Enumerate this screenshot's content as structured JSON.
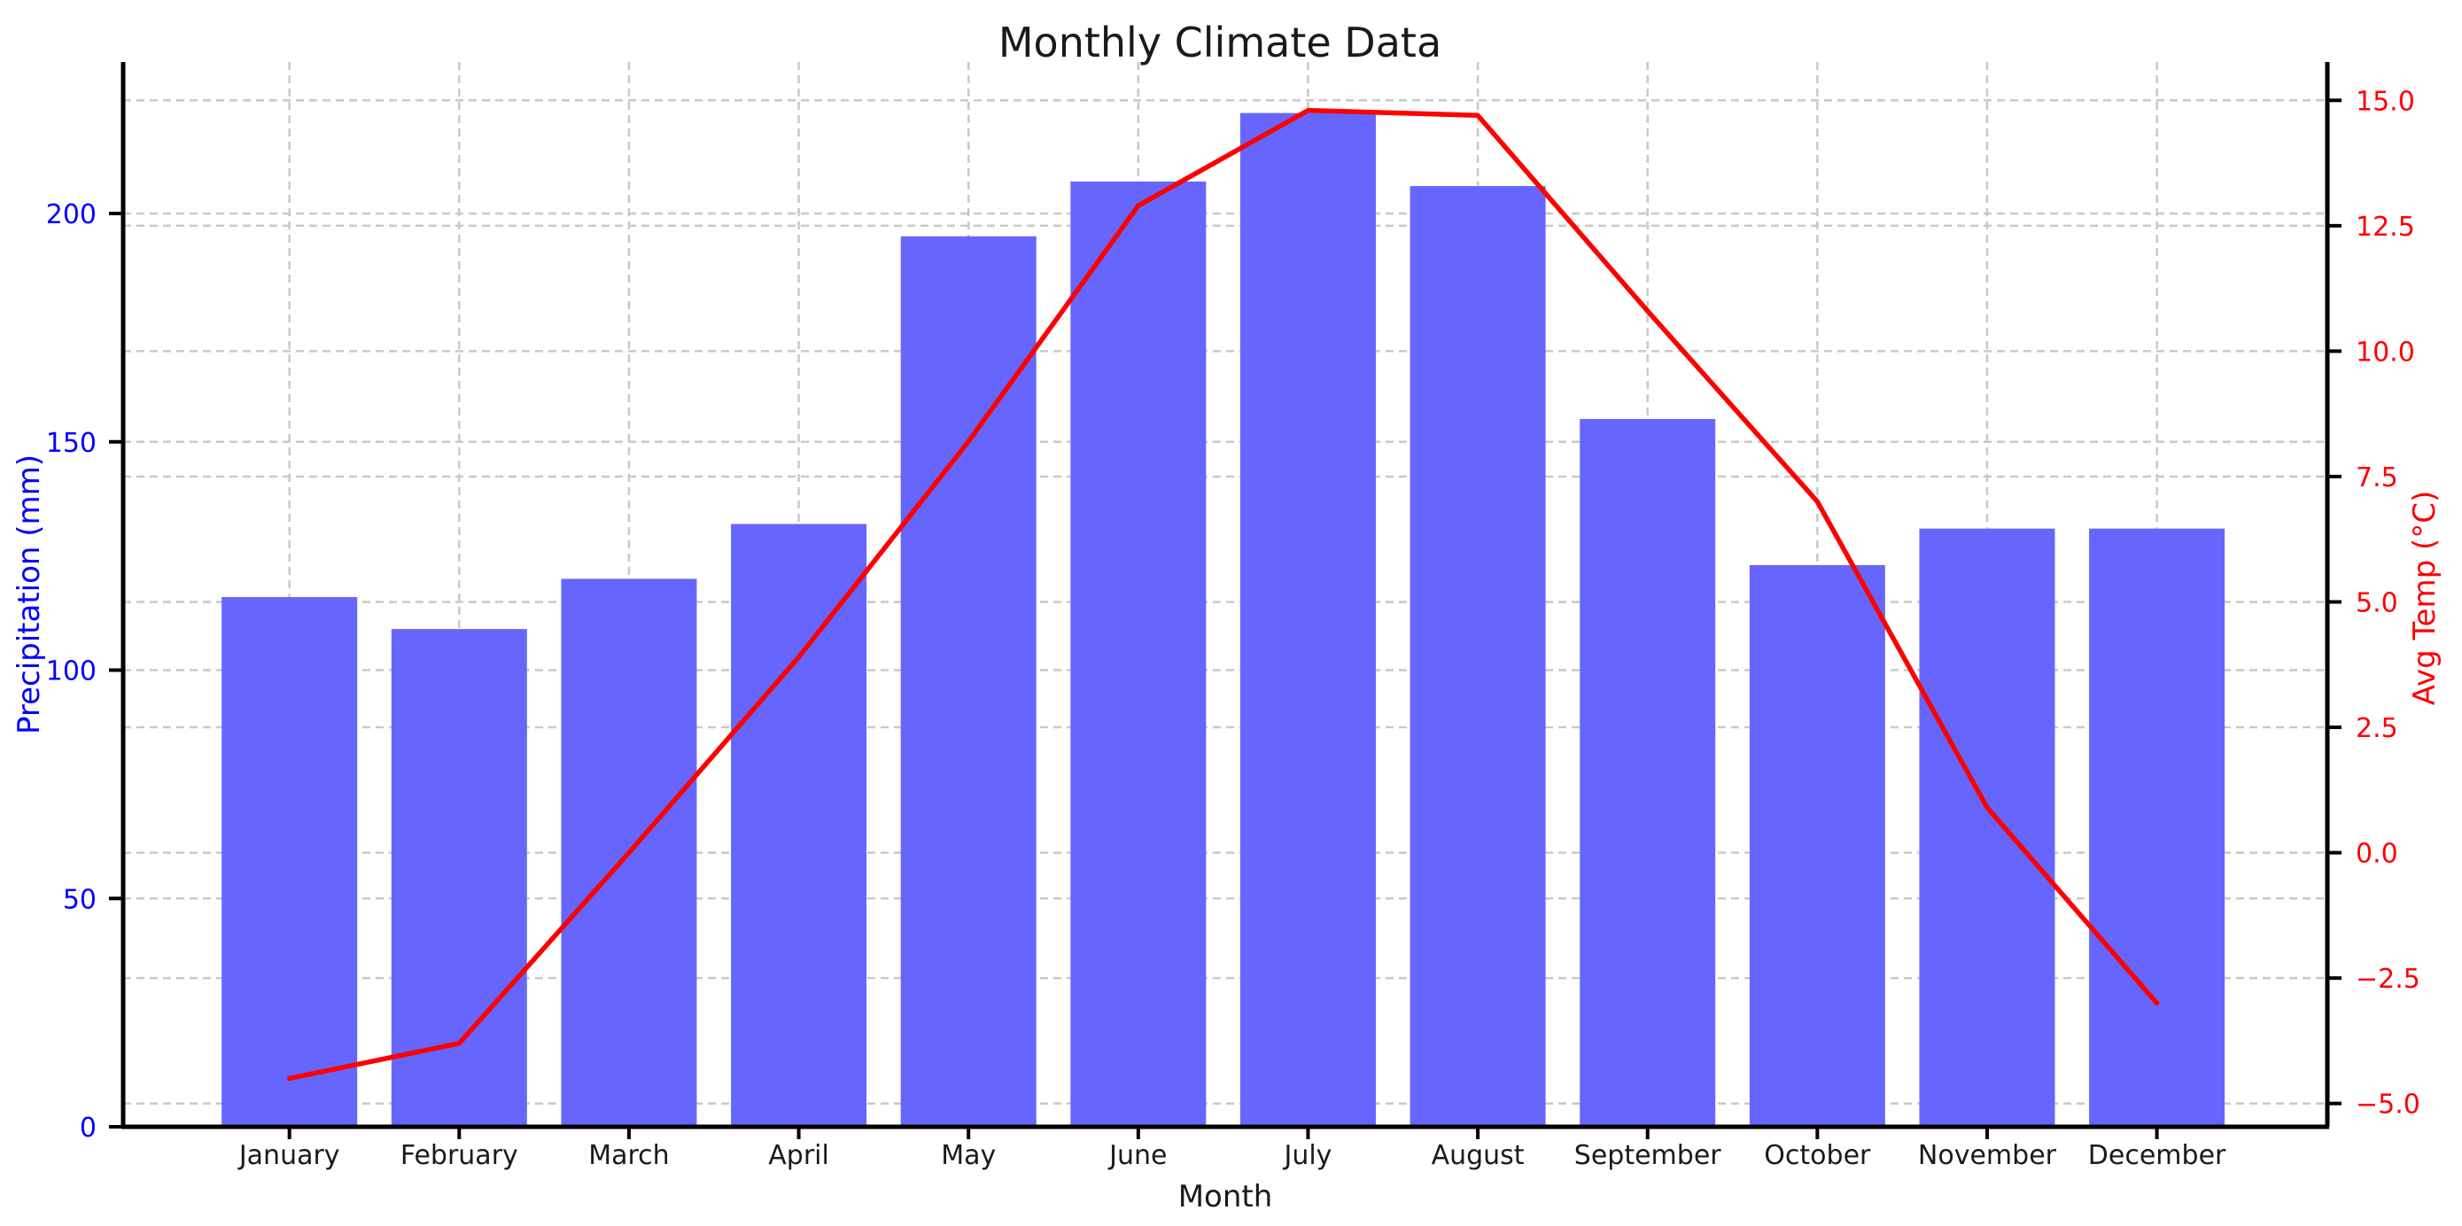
{
  "chart_data": {
    "type": "combo_bar_line",
    "title": "Monthly Climate Data",
    "xlabel": "Month",
    "ylabel_left": "Precipitation (mm)",
    "ylabel_right": "Avg Temp (°C)",
    "categories": [
      "January",
      "February",
      "March",
      "April",
      "May",
      "June",
      "July",
      "August",
      "September",
      "October",
      "November",
      "December"
    ],
    "series": [
      {
        "name": "Precipitation (mm)",
        "type": "bar",
        "axis": "left",
        "color": "#6666ff",
        "values": [
          116,
          109,
          120,
          132,
          195,
          207,
          222,
          206,
          155,
          123,
          131,
          131
        ]
      },
      {
        "name": "Avg Temp (°C)",
        "type": "line",
        "axis": "right",
        "color": "#ff0000",
        "values": [
          -4.5,
          -3.8,
          0.0,
          3.9,
          8.2,
          12.9,
          14.8,
          14.7,
          10.8,
          7.0,
          0.9,
          -3.0
        ]
      }
    ],
    "left_axis": {
      "ticks": [
        0,
        50,
        100,
        150,
        200
      ],
      "range": [
        0,
        233.2
      ],
      "tick_color": "#0000ff"
    },
    "right_axis": {
      "ticks": [
        -5.0,
        -2.5,
        0.0,
        2.5,
        5.0,
        7.5,
        10.0,
        12.5,
        15.0
      ],
      "range": [
        -5.47,
        15.77
      ],
      "tick_color": "#ff0000"
    },
    "grid": "both-axes-dashed",
    "legend": "none",
    "colors": {
      "bar": "#6666ff",
      "line": "#ff0000",
      "left_label": "#0000ff",
      "right_label": "#ff0000",
      "grid": "#c9c9c9",
      "spine": "#000000",
      "title": "#1a1a1a",
      "month_labels": "#1a1a1a"
    }
  }
}
